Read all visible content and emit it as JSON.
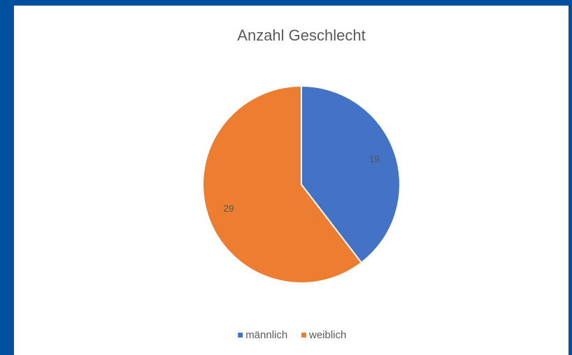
{
  "chart_data": {
    "type": "pie",
    "title": "Anzahl Geschlecht",
    "categories": [
      "männlich",
      "weiblich"
    ],
    "values": [
      19,
      29
    ],
    "colors": [
      "#4472c4",
      "#ed7d31"
    ],
    "legend": "bottom"
  }
}
